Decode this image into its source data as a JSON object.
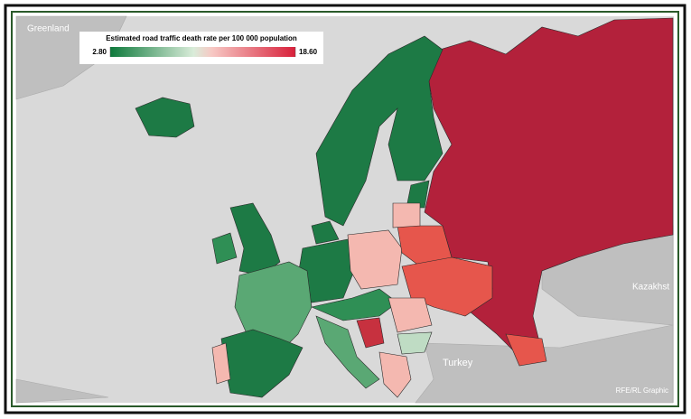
{
  "legend": {
    "title": "Estimated road traffic death rate per 100 000 population",
    "min": {
      "value": 2.8,
      "label": "2.80"
    },
    "max": {
      "value": 18.6,
      "label": "18.60"
    }
  },
  "labels": {
    "greenland": "Greenland",
    "turkey": "Turkey",
    "kazakhstan": "Kazakhst"
  },
  "credit": "RFE/RL Graphic"
}
